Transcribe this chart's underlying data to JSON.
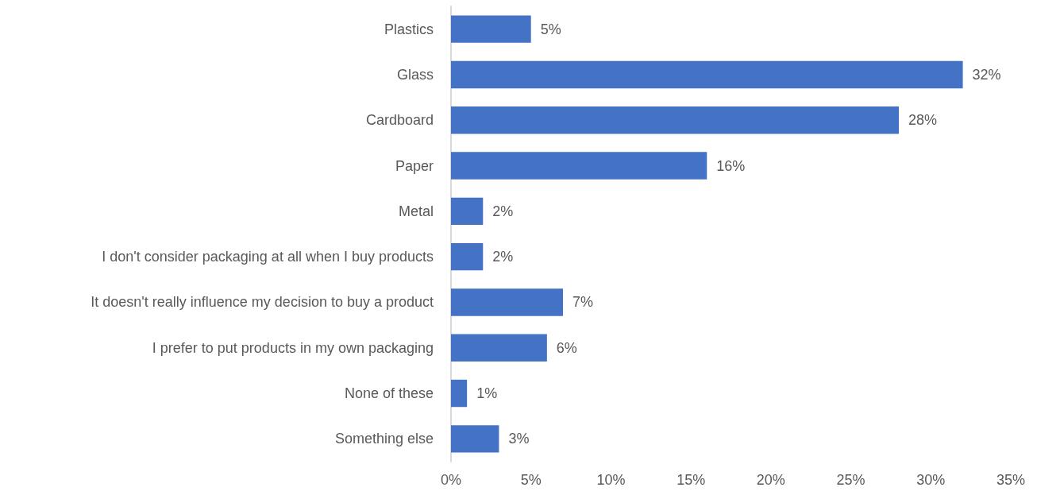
{
  "chart_data": {
    "type": "bar",
    "orientation": "horizontal",
    "categories": [
      "Plastics",
      "Glass",
      "Cardboard",
      "Paper",
      "Metal",
      "I don't consider packaging at all when I buy products",
      "It doesn't really influence my decision to buy a product",
      "I prefer to put products in my own packaging",
      "None of these",
      "Something else"
    ],
    "values": [
      5,
      32,
      28,
      16,
      2,
      2,
      7,
      6,
      1,
      3
    ],
    "value_labels": [
      "5%",
      "32%",
      "28%",
      "16%",
      "2%",
      "2%",
      "7%",
      "6%",
      "1%",
      "3%"
    ],
    "color": "#4472c4",
    "xlim": [
      0,
      35
    ],
    "xticks": [
      {
        "value": 0,
        "label": "0%"
      },
      {
        "value": 5,
        "label": "5%"
      },
      {
        "value": 10,
        "label": "10%"
      },
      {
        "value": 15,
        "label": "15%"
      },
      {
        "value": 20,
        "label": "20%"
      },
      {
        "value": 25,
        "label": "25%"
      },
      {
        "value": 30,
        "label": "30%"
      },
      {
        "value": 35,
        "label": "35%"
      }
    ],
    "grid": false
  }
}
